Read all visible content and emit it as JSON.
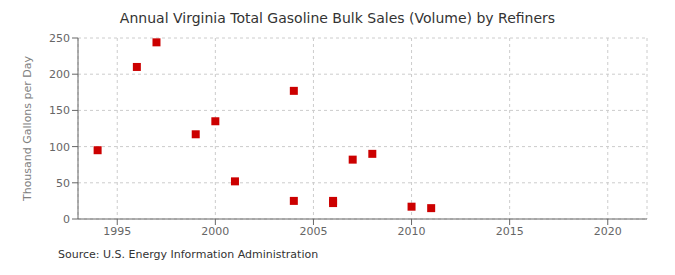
{
  "chart_data": {
    "type": "scatter",
    "title": "Annual Virginia Total Gasoline Bulk Sales (Volume) by Refiners",
    "ylabel": "Thousand Gallons per Day",
    "source": "Source: U.S. Energy Information Administration",
    "x": [
      1994,
      1996,
      1997,
      1999,
      2000,
      2001,
      2004,
      2004,
      2006,
      2006,
      2007,
      2008,
      2010,
      2011
    ],
    "values": [
      95,
      210,
      244,
      117,
      135,
      52,
      177,
      25,
      25,
      22,
      82,
      90,
      17,
      15
    ],
    "xlim": [
      1993,
      2022
    ],
    "ylim": [
      0,
      250
    ],
    "xticks": [
      1995,
      2000,
      2005,
      2010,
      2015,
      2020
    ],
    "yticks": [
      0,
      50,
      100,
      150,
      200,
      250
    ],
    "grid": true,
    "color": "#cc0000",
    "marker": "square"
  }
}
